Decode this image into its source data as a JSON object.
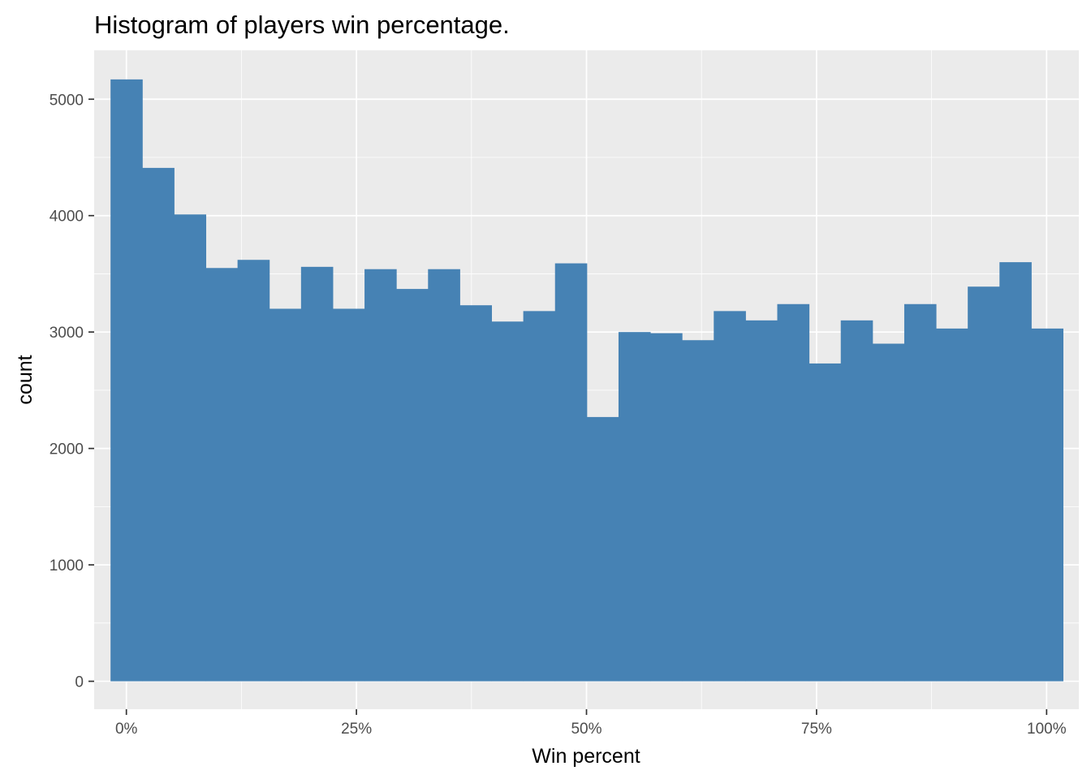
{
  "chart_data": {
    "type": "bar",
    "title": "Histogram of players win percentage.",
    "xlabel": "Win percent",
    "ylabel": "count",
    "xlim": [
      -0.035,
      1.035
    ],
    "ylim": [
      -240,
      5420
    ],
    "x_ticks": [
      0,
      0.25,
      0.5,
      0.75,
      1.0
    ],
    "x_tick_labels": [
      "0%",
      "25%",
      "50%",
      "75%",
      "100%"
    ],
    "y_ticks": [
      0,
      1000,
      2000,
      3000,
      4000,
      5000
    ],
    "y_tick_labels": [
      "0",
      "1000",
      "2000",
      "3000",
      "4000",
      "5000"
    ],
    "bin_start": -0.0172,
    "bin_width": 0.0345,
    "values": [
      5170,
      4410,
      4010,
      3550,
      3620,
      3200,
      3560,
      3200,
      3540,
      3370,
      3540,
      3230,
      3090,
      3180,
      3590,
      2270,
      3000,
      2990,
      2930,
      3180,
      3100,
      3240,
      2730,
      3100,
      2900,
      3240,
      3030,
      3390,
      3600,
      3030
    ],
    "bar_color": "#4682B4",
    "panel_background": "#EBEBEB",
    "grid_color": "#FFFFFF",
    "grid": true,
    "legend": "none"
  }
}
